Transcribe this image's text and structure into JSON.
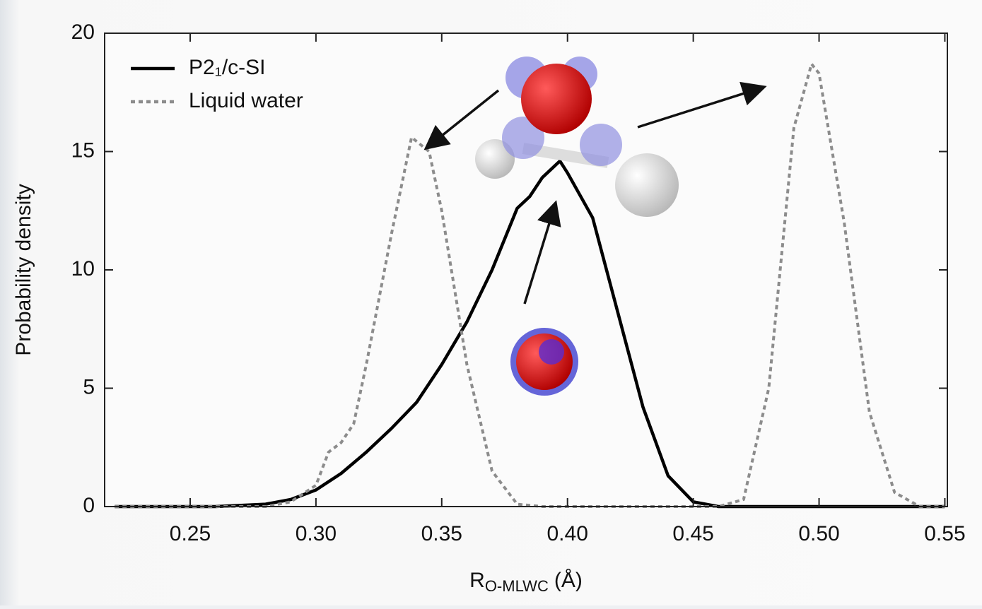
{
  "chart_data": {
    "type": "line",
    "x_label": {
      "base": "R",
      "subscript": "O-MLWC",
      "unit": "(Å)"
    },
    "y_label": "Probability density",
    "xlim": [
      0.216,
      0.551
    ],
    "ylim": [
      0,
      20
    ],
    "xticks": [
      0.25,
      {
        "value": 0.3,
        "label": "0.30"
      },
      0.35,
      {
        "value": 0.4,
        "label": "0.40"
      },
      0.45,
      {
        "value": 0.5,
        "label": "0.50"
      },
      0.55
    ],
    "yticks": [
      0,
      5,
      10,
      15,
      20
    ],
    "legend": "upper left",
    "series": [
      {
        "name": "P2₁/c-SI",
        "color": "#000000",
        "dash": false,
        "x": [
          0.22,
          0.26,
          0.28,
          0.29,
          0.3,
          0.31,
          0.32,
          0.33,
          0.34,
          0.35,
          0.36,
          0.37,
          0.38,
          0.385,
          0.39,
          0.397,
          0.4,
          0.41,
          0.42,
          0.43,
          0.44,
          0.45,
          0.46,
          0.55
        ],
        "values": [
          0,
          0,
          0.1,
          0.3,
          0.7,
          1.4,
          2.3,
          3.3,
          4.4,
          6.0,
          7.8,
          10.0,
          12.6,
          13.1,
          13.9,
          14.6,
          14.1,
          12.2,
          8.2,
          4.2,
          1.3,
          0.2,
          0,
          0
        ]
      },
      {
        "name": "Liquid water",
        "color": "#8c8c8c",
        "dash": true,
        "x": [
          0.22,
          0.28,
          0.29,
          0.3,
          0.305,
          0.31,
          0.315,
          0.32,
          0.33,
          0.338,
          0.345,
          0.35,
          0.36,
          0.37,
          0.38,
          0.39,
          0.46,
          0.47,
          0.48,
          0.49,
          0.497,
          0.5,
          0.51,
          0.52,
          0.53,
          0.54,
          0.55
        ],
        "values": [
          0,
          0,
          0.2,
          0.9,
          2.3,
          2.7,
          3.5,
          6.0,
          11.5,
          15.6,
          15.0,
          12.5,
          6.0,
          1.5,
          0.1,
          0,
          0,
          0.3,
          5.0,
          16.0,
          18.7,
          18.3,
          12.0,
          4.0,
          0.6,
          0,
          0
        ]
      }
    ]
  }
}
